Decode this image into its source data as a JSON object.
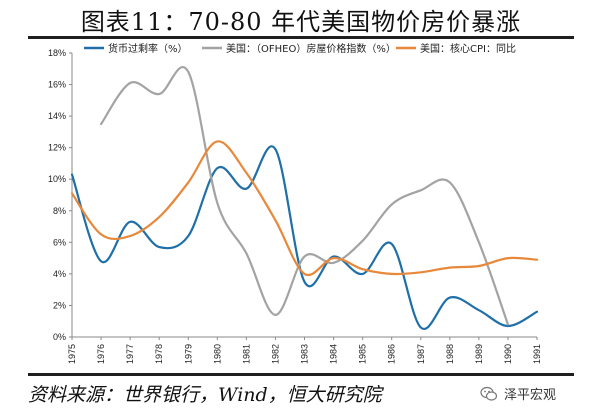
{
  "title": "图表11：70-80 年代美国物价房价暴涨",
  "source": "资料来源：世界银行，Wind，恒大研究院",
  "brand": "泽平宏观",
  "chart_data": {
    "type": "line",
    "x": [
      1975,
      1976,
      1977,
      1978,
      1979,
      1980,
      1981,
      1982,
      1983,
      1984,
      1985,
      1986,
      1987,
      1988,
      1989,
      1990,
      1991
    ],
    "ylim": [
      0,
      18
    ],
    "yticks": [
      0,
      2,
      4,
      6,
      8,
      10,
      12,
      14,
      16,
      18
    ],
    "ytick_labels": [
      "0%",
      "2%",
      "4%",
      "6%",
      "8%",
      "10%",
      "12%",
      "14%",
      "16%",
      "18%"
    ],
    "legend_position": "top",
    "grid": false,
    "series": [
      {
        "name": "货币过剩率（%）",
        "color": "#1f6fa8",
        "values": [
          10.3,
          4.8,
          7.3,
          5.7,
          6.4,
          10.7,
          9.4,
          11.9,
          3.5,
          5.1,
          4.0,
          5.9,
          0.6,
          2.5,
          1.7,
          0.7,
          1.6
        ]
      },
      {
        "name": "美国：（OFHEO）房屋价格指数（%）",
        "color": "#a3a3a3",
        "values": [
          null,
          13.5,
          16.1,
          15.4,
          16.8,
          8.5,
          5.3,
          1.4,
          5.1,
          4.7,
          6.1,
          8.4,
          9.3,
          9.8,
          6.0,
          0.8,
          null
        ]
      },
      {
        "name": "美国：核心CPI：同比",
        "color": "#e8883a",
        "values": [
          9.1,
          6.5,
          6.4,
          7.6,
          9.8,
          12.4,
          10.4,
          7.4,
          4.0,
          5.0,
          4.3,
          4.0,
          4.1,
          4.4,
          4.5,
          5.0,
          4.9
        ]
      }
    ]
  }
}
